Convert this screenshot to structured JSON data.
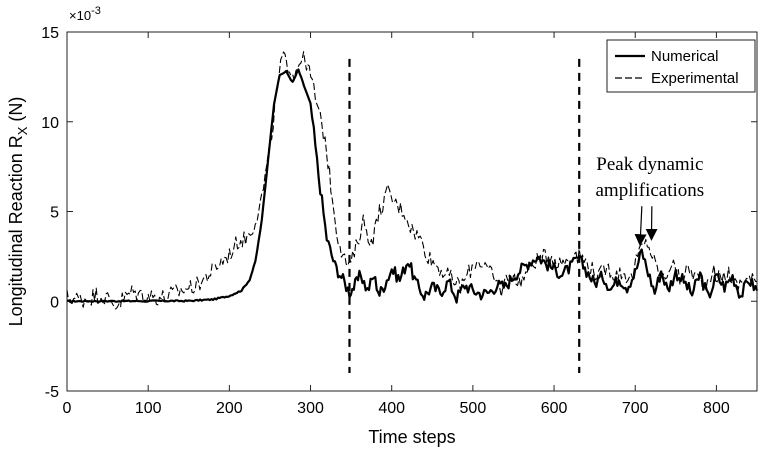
{
  "chart_data": {
    "type": "line",
    "title": "",
    "xlabel": "Time steps",
    "ylabel": "Longitudinal Reaction R",
    "ylabel_sub": "X",
    "ylabel_unit": " (N)",
    "y_exponent_label": "×10",
    "y_exponent_power": "-3",
    "xlim": [
      0,
      850
    ],
    "ylim": [
      -5,
      15
    ],
    "xticks": [
      0,
      100,
      200,
      300,
      400,
      500,
      600,
      700,
      800
    ],
    "xtick_labels": [
      "0",
      "100",
      "200",
      "300",
      "400",
      "500",
      "600",
      "700",
      "800"
    ],
    "yticks": [
      -5,
      0,
      5,
      10,
      15
    ],
    "ytick_labels": [
      "-5",
      "0",
      "5",
      "10",
      "15"
    ],
    "grid": false,
    "legend": "top-right",
    "vlines": [
      348,
      631
    ],
    "vline_range": [
      -4,
      13.5
    ],
    "annotation": {
      "lines": [
        "Peak dynamic",
        "amplifications"
      ],
      "text_anchor": [
        718,
        7.3
      ],
      "arrow_targets": [
        [
          706,
          3.2
        ],
        [
          720,
          3.5
        ]
      ]
    },
    "series": [
      {
        "name": "Numerical",
        "style": "solid",
        "color": "#000000",
        "x": [
          0,
          150,
          180,
          200,
          215,
          225,
          232,
          240,
          248,
          255,
          262,
          270,
          278,
          285,
          292,
          300,
          310,
          320,
          330,
          340,
          348,
          355,
          362,
          370,
          378,
          385,
          392,
          400,
          410,
          420,
          430,
          440,
          450,
          460,
          470,
          480,
          490,
          500,
          510,
          520,
          530,
          540,
          550,
          560,
          570,
          580,
          590,
          600,
          610,
          620,
          630,
          640,
          650,
          660,
          670,
          680,
          690,
          700,
          708,
          716,
          724,
          732,
          740,
          750,
          760,
          770,
          780,
          790,
          800,
          810,
          820,
          830,
          840,
          850
        ],
        "y": [
          0,
          0.02,
          0.1,
          0.3,
          0.6,
          1.2,
          2.2,
          4.5,
          8.0,
          11.0,
          12.6,
          12.8,
          12.2,
          12.9,
          12.0,
          11.0,
          7.0,
          3.5,
          2.0,
          1.2,
          0.5,
          0.9,
          1.5,
          0.6,
          1.4,
          0.4,
          1.0,
          1.8,
          1.2,
          2.3,
          1.0,
          0.3,
          0.8,
          0.5,
          1.1,
          0.2,
          0.9,
          0.6,
          0.4,
          0.5,
          0.9,
          0.8,
          1.4,
          1.8,
          2.2,
          2.5,
          2.1,
          1.8,
          1.5,
          1.9,
          2.4,
          1.7,
          1.0,
          1.4,
          0.7,
          1.3,
          0.8,
          1.6,
          2.8,
          1.6,
          0.5,
          1.7,
          0.6,
          1.6,
          1.1,
          0.4,
          1.5,
          0.2,
          1.4,
          0.8,
          1.4,
          0.3,
          1.2,
          0.6
        ]
      },
      {
        "name": "Experimental",
        "style": "dashed",
        "color": "#000000",
        "x": [
          0,
          20,
          40,
          60,
          80,
          100,
          120,
          140,
          160,
          175,
          190,
          200,
          210,
          220,
          230,
          240,
          250,
          258,
          265,
          272,
          280,
          288,
          295,
          302,
          310,
          318,
          325,
          332,
          340,
          348,
          356,
          365,
          375,
          385,
          395,
          405,
          415,
          425,
          435,
          445,
          455,
          465,
          475,
          485,
          495,
          505,
          515,
          525,
          535,
          545,
          555,
          565,
          575,
          585,
          595,
          605,
          615,
          625,
          635,
          645,
          655,
          665,
          675,
          685,
          695,
          705,
          715,
          725,
          735,
          745,
          755,
          765,
          775,
          785,
          795,
          805,
          815,
          825,
          835,
          850
        ],
        "y": [
          0.2,
          0.1,
          0.4,
          -0.2,
          0.5,
          0.3,
          0.2,
          0.6,
          0.9,
          1.5,
          2.2,
          2.6,
          3.3,
          3.5,
          4.2,
          5.8,
          8.5,
          11.5,
          13.6,
          13.2,
          12.6,
          13.6,
          13.3,
          12.2,
          10.5,
          9.0,
          6.5,
          4.0,
          2.5,
          1.9,
          3.0,
          4.5,
          3.2,
          5.0,
          6.1,
          5.4,
          5.0,
          4.0,
          3.5,
          2.5,
          2.0,
          1.6,
          1.2,
          0.8,
          1.6,
          2.3,
          2.0,
          1.3,
          0.6,
          1.6,
          1.0,
          1.5,
          2.2,
          2.4,
          2.6,
          2.1,
          2.3,
          2.7,
          2.4,
          1.9,
          1.4,
          1.9,
          1.5,
          1.6,
          1.2,
          2.8,
          3.3,
          2.0,
          1.2,
          2.2,
          1.1,
          1.8,
          1.4,
          0.9,
          1.7,
          1.2,
          1.6,
          0.8,
          1.3,
          1.1
        ]
      }
    ]
  }
}
